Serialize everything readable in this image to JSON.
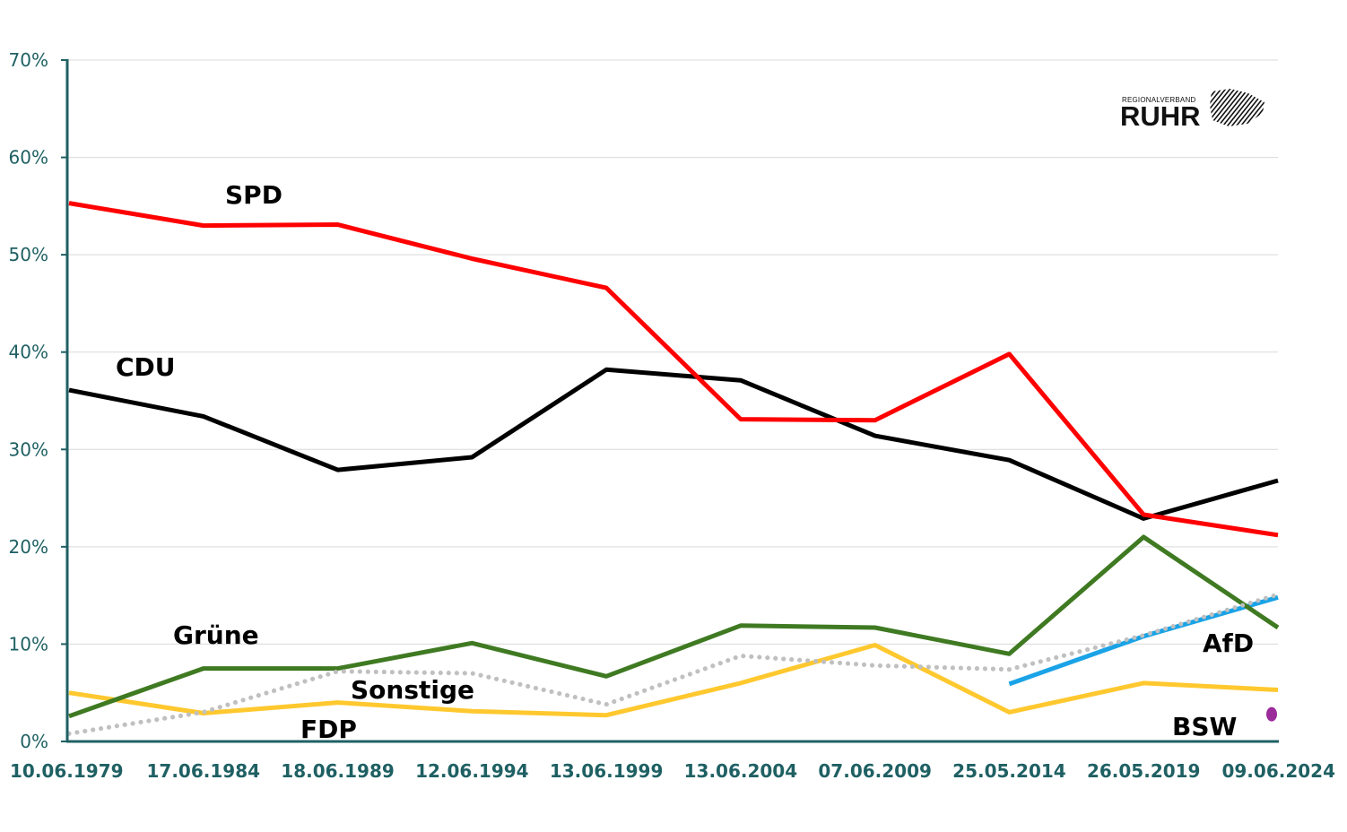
{
  "logo": {
    "small": "REGIONALVERBAND",
    "big": "RUHR"
  },
  "chart_data": {
    "type": "line",
    "title": "",
    "xlabel": "",
    "ylabel": "",
    "ylim": [
      0,
      70
    ],
    "y_ticks": [
      "0%",
      "10%",
      "20%",
      "30%",
      "40%",
      "50%",
      "60%",
      "70%"
    ],
    "grid": true,
    "categories": [
      "10.06.1979",
      "17.06.1984",
      "18.06.1989",
      "12.06.1994",
      "13.06.1999",
      "13.06.2004",
      "07.06.2009",
      "25.05.2014",
      "26.05.2019",
      "09.06.2024"
    ],
    "series": [
      {
        "name": "SPD",
        "color": "#ff0000",
        "style": "solid",
        "values": [
          55.3,
          53.0,
          53.1,
          49.6,
          46.6,
          33.1,
          33.0,
          39.8,
          23.3,
          21.2
        ]
      },
      {
        "name": "CDU",
        "color": "#000000",
        "style": "solid",
        "values": [
          36.1,
          33.4,
          27.9,
          29.2,
          38.2,
          37.1,
          31.4,
          28.9,
          22.9,
          26.8
        ]
      },
      {
        "name": "Grüne",
        "color": "#3f7a22",
        "style": "solid",
        "values": [
          2.6,
          7.5,
          7.5,
          10.1,
          6.7,
          11.9,
          11.7,
          9.0,
          21.0,
          11.7
        ]
      },
      {
        "name": "Sonstige",
        "color": "#c0c0c0",
        "style": "dotted",
        "values": [
          0.8,
          3.0,
          7.2,
          7.0,
          3.8,
          8.8,
          7.8,
          7.4,
          10.9,
          15.1
        ]
      },
      {
        "name": "FDP",
        "color": "#ffc82e",
        "style": "solid",
        "values": [
          5.0,
          2.9,
          4.0,
          3.1,
          2.7,
          6.0,
          9.9,
          3.0,
          6.0,
          5.3
        ]
      },
      {
        "name": "AfD",
        "color": "#1aa3e6",
        "style": "solid",
        "values": [
          null,
          null,
          null,
          null,
          null,
          null,
          null,
          5.9,
          10.8,
          14.8
        ]
      },
      {
        "name": "BSW",
        "color": "#9b2a9b",
        "style": "point",
        "values": [
          null,
          null,
          null,
          null,
          null,
          null,
          null,
          null,
          null,
          2.8
        ]
      }
    ],
    "labels": [
      {
        "text": "SPD",
        "color": "#ff0000"
      },
      {
        "text": "CDU",
        "color": "#000000"
      },
      {
        "text": "Grüne",
        "color": "#3f7a22"
      },
      {
        "text": "Sonstige",
        "color": "#bdbdbd"
      },
      {
        "text": "FDP",
        "color": "#ffc82e"
      },
      {
        "text": "AfD",
        "color": "#1aa3e6"
      },
      {
        "text": "BSW",
        "color": "#9b2a9b"
      }
    ]
  }
}
